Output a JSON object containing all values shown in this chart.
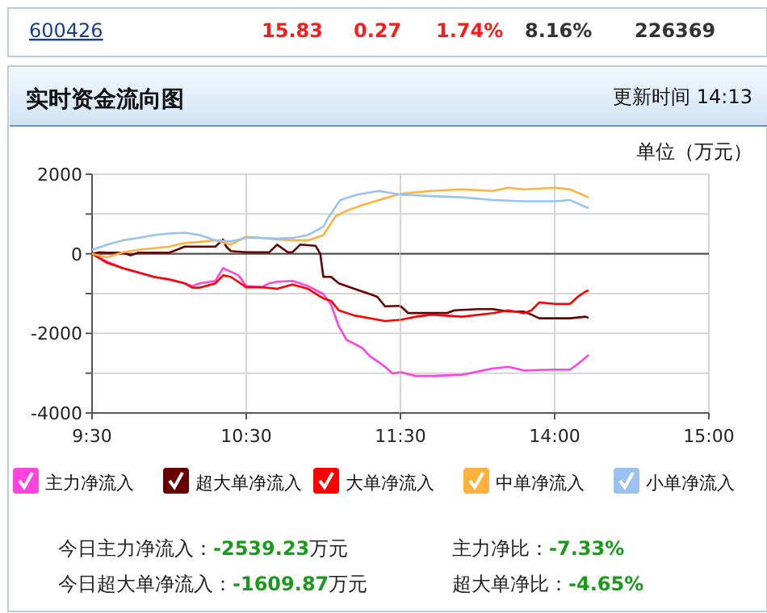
{
  "chart_data": [
    {
      "type": "line",
      "title": "实时资金流向图",
      "ylabel": "单位（万元）",
      "annotations": [
        "600426",
        "15.83",
        "0.27",
        "1.74%",
        "8.16%",
        "226369",
        "更新时间 14:13",
        "今日主力净流入：-2539.23万元",
        "主力净比：-7.33%",
        "今日超大单净流入：-1609.87万元",
        "超大单净比：-4.65%"
      ],
      "xlim": [
        9.5,
        11.5
      ],
      "xticks": [
        {
          "value": 9.5,
          "label": "9:30"
        },
        {
          "value": 10.5,
          "label": "10:30"
        },
        {
          "value": 11.5,
          "label": "11:30"
        }
      ],
      "ylim": [
        -4000,
        2000
      ],
      "yticks": [
        2000,
        {
          "value": 1000,
          "label": null
        },
        0,
        {
          "value": -1000,
          "label": null
        },
        -2000,
        {
          "value": -3000,
          "label": null
        },
        -4000
      ],
      "grid": true,
      "legend": "bottom",
      "marker": "none",
      "line_style": "solid",
      "ref_lines": [
        {
          "axis": "y",
          "value": 0,
          "color": "#555555"
        }
      ],
      "series": [
        {
          "name": "主力净流入",
          "color": "#ff44dd",
          "x": [
            9.5,
            9.6,
            9.7,
            9.8,
            9.9,
            10,
            10.1,
            10.15,
            10.2,
            10.3,
            10.35,
            10.4,
            10.45,
            10.5,
            10.6,
            10.65,
            10.7,
            10.8,
            10.85,
            10.9,
            11,
            11.05,
            11.1,
            11.15,
            11.25,
            11.3,
            11.35,
            11.4,
            11.45,
            11.5
          ],
          "values": [
            0,
            -200,
            -360,
            -470,
            -580,
            -650,
            -740,
            -810,
            -740,
            -680,
            -360,
            -450,
            -540,
            -810,
            -840,
            -740,
            -700,
            -680,
            -740,
            -810,
            -1010,
            -1280,
            -1820,
            -2160,
            -2360,
            -2570,
            -2700,
            -2840,
            -3010,
            -2970
          ]
        },
        {
          "name": "超大单净流入",
          "color": "#660000",
          "x": [
            9.5,
            9.55,
            9.6,
            9.7,
            9.75,
            9.8,
            9.9,
            10,
            10.05,
            10.1,
            10.2,
            10.3,
            10.35,
            10.37,
            10.4,
            10.5,
            10.6,
            10.65,
            10.7,
            10.77,
            10.8,
            10.85,
            10.95,
            10.98,
            11,
            11.05,
            11.1,
            11.2,
            11.3,
            11.35,
            11.4,
            11.5
          ],
          "values": [
            0,
            40,
            30,
            30,
            -40,
            30,
            30,
            30,
            100,
            180,
            180,
            180,
            360,
            180,
            70,
            40,
            40,
            40,
            230,
            40,
            40,
            230,
            200,
            0,
            -580,
            -580,
            -740,
            -880,
            -1010,
            -1080,
            -1320,
            -1310
          ]
        },
        {
          "name": "大单净流入",
          "color": "#ff0000",
          "x": [
            9.5,
            9.6,
            9.7,
            9.8,
            9.9,
            10,
            10.1,
            10.15,
            10.2,
            10.3,
            10.35,
            10.4,
            10.5,
            10.6,
            10.7,
            10.8,
            10.9,
            11,
            11.05,
            11.1,
            11.2,
            11.3,
            11.4,
            11.5
          ],
          "values": [
            0,
            -230,
            -360,
            -470,
            -580,
            -640,
            -740,
            -850,
            -850,
            -740,
            -540,
            -580,
            -840,
            -840,
            -880,
            -770,
            -880,
            -1120,
            -1180,
            -1420,
            -1550,
            -1620,
            -1690,
            -1660
          ]
        },
        {
          "name": "中单净流入",
          "color": "#ffb13d",
          "x": [
            9.5,
            9.6,
            9.7,
            9.8,
            9.9,
            10,
            10.1,
            10.2,
            10.3,
            10.4,
            10.5,
            10.6,
            10.7,
            10.8,
            10.9,
            11,
            11.08,
            11.15,
            11.25,
            11.36,
            11.5
          ],
          "values": [
            0,
            -90,
            40,
            100,
            140,
            180,
            270,
            300,
            340,
            230,
            430,
            400,
            360,
            340,
            340,
            470,
            950,
            1080,
            1220,
            1350,
            1510
          ]
        },
        {
          "name": "小单净流入",
          "color": "#99c2ee",
          "x": [
            9.5,
            9.6,
            9.7,
            9.8,
            9.9,
            10,
            10.1,
            10.2,
            10.3,
            10.4,
            10.5,
            10.6,
            10.7,
            10.8,
            10.9,
            11,
            11.03,
            11.11,
            11.22,
            11.36,
            11.5
          ],
          "values": [
            100,
            230,
            340,
            400,
            470,
            510,
            530,
            470,
            340,
            310,
            400,
            400,
            380,
            400,
            470,
            680,
            900,
            1350,
            1490,
            1580,
            1490
          ]
        }
      ]
    },
    {
      "type": "line",
      "tick_labels": "x",
      "xlim": [
        13,
        15
      ],
      "xticks": [
        {
          "value": 13,
          "label": null
        },
        {
          "value": 14,
          "label": "14:00"
        },
        {
          "value": 15,
          "label": "15:00"
        }
      ],
      "ylim": [
        -4000,
        2000
      ],
      "yticks": [
        2000,
        1000,
        0,
        -1000,
        -2000,
        -3000,
        -4000
      ],
      "grid": true,
      "marker": "none",
      "line_style": "solid",
      "ref_lines": [
        {
          "axis": "y",
          "value": 0,
          "color": "#555555"
        }
      ],
      "series": [
        {
          "color": "#ff44dd",
          "x": [
            13,
            13.1,
            13.2,
            13.4,
            13.6,
            13.7,
            13.8,
            14,
            14.1,
            14.15,
            14.2,
            14.22
          ],
          "values": [
            -2970,
            -3070,
            -3070,
            -3040,
            -2880,
            -2840,
            -2930,
            -2910,
            -2910,
            -2770,
            -2610,
            -2540
          ]
        },
        {
          "color": "#660000",
          "x": [
            13,
            13.05,
            13.2,
            13.3,
            13.35,
            13.5,
            13.6,
            13.7,
            13.8,
            13.85,
            13.9,
            14,
            14.1,
            14.2,
            14.22
          ],
          "values": [
            -1310,
            -1490,
            -1490,
            -1490,
            -1420,
            -1390,
            -1390,
            -1450,
            -1450,
            -1530,
            -1620,
            -1620,
            -1620,
            -1580,
            -1610
          ]
        },
        {
          "color": "#ff0000",
          "x": [
            13,
            13.1,
            13.2,
            13.4,
            13.6,
            13.7,
            13.8,
            13.85,
            13.9,
            14,
            14.1,
            14.15,
            14.2,
            14.22
          ],
          "values": [
            -1660,
            -1580,
            -1530,
            -1580,
            -1490,
            -1420,
            -1490,
            -1420,
            -1220,
            -1260,
            -1260,
            -1080,
            -950,
            -920
          ]
        },
        {
          "color": "#ffb13d",
          "x": [
            13,
            13.2,
            13.4,
            13.6,
            13.7,
            13.8,
            14,
            14.1,
            14.2,
            14.22
          ],
          "values": [
            1510,
            1580,
            1620,
            1580,
            1660,
            1620,
            1660,
            1620,
            1450,
            1420
          ]
        },
        {
          "color": "#99c2ee",
          "x": [
            13,
            13.2,
            13.4,
            13.6,
            13.8,
            14,
            14.1,
            14.2,
            14.22
          ],
          "values": [
            1490,
            1450,
            1420,
            1350,
            1320,
            1320,
            1350,
            1180,
            1150
          ]
        }
      ]
    }
  ]
}
